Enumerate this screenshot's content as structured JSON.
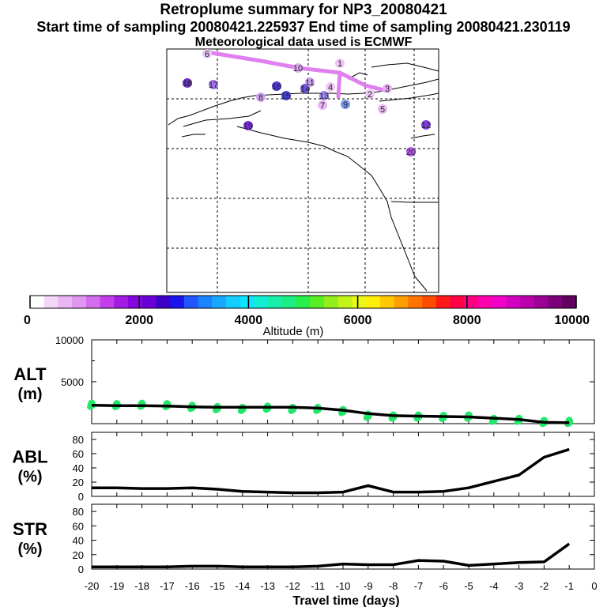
{
  "titles": {
    "line1": "Retroplume summary for NP3_20080421",
    "line2": "Start time of sampling 20080421.225937     End time of sampling 20080421.230119",
    "line3": "Meteorological data used is ECMWF"
  },
  "colors": {
    "series_line": "#000000",
    "alt_points": "#22e86a",
    "plume_path": "#e080f0"
  },
  "colorbar": {
    "label": "Altitude (m)",
    "ticks": [
      "0",
      "2000",
      "4000",
      "6000",
      "8000",
      "10000"
    ],
    "min": 0,
    "max": 10000,
    "colors": [
      "#ffffff",
      "#f4d6f6",
      "#eab6f2",
      "#e196ef",
      "#d46ced",
      "#c13ee8",
      "#a21be4",
      "#8306df",
      "#6b00d6",
      "#3d00c9",
      "#1b13ee",
      "#2256ff",
      "#1c83ff",
      "#18a9ff",
      "#14cdff",
      "#10e3ff",
      "#11eed4",
      "#17eeaa",
      "#1bee85",
      "#27ee4a",
      "#58ee24",
      "#93ee19",
      "#c2f418",
      "#e8f818",
      "#ffee0c",
      "#ffc800",
      "#ff9e00",
      "#ff7400",
      "#ff4d00",
      "#ff1a1a",
      "#ff0046",
      "#ff0082",
      "#ff00ae",
      "#f000c8",
      "#d400c0",
      "#ba00ab",
      "#9c0094",
      "#7b007a",
      "#600060"
    ]
  },
  "map_labels": [
    "20",
    "19",
    "18",
    "17",
    "16",
    "15",
    "14",
    "13",
    "12",
    "11",
    "10",
    "9",
    "8",
    "7",
    "6",
    "5",
    "4",
    "3",
    "2",
    "1"
  ],
  "chart_data": [
    {
      "type": "line",
      "title": "ALT",
      "ylabel": "ALT (m)",
      "ylabel_top": "ALT",
      "ylabel_bottom": "(m)",
      "xlabel": "",
      "ylim": [
        0,
        10000
      ],
      "yticks": [
        "10000",
        "5000"
      ],
      "x": [
        -20,
        -19,
        -18,
        -17,
        -16,
        -15,
        -14,
        -13,
        -12,
        -11,
        -10,
        -9,
        -8,
        -7,
        -6,
        -5,
        -4,
        -3,
        -2,
        -1
      ],
      "values": [
        2200,
        2150,
        2150,
        2100,
        2000,
        1950,
        1950,
        1950,
        1950,
        1850,
        1600,
        1200,
        950,
        900,
        850,
        800,
        650,
        500,
        150,
        100
      ],
      "points": [
        2300,
        2250,
        2300,
        2250,
        2050,
        1900,
        1800,
        1950,
        1800,
        1800,
        1550,
        1000,
        900,
        900,
        850,
        900,
        500,
        500,
        250,
        250
      ]
    },
    {
      "type": "line",
      "title": "ABL",
      "ylabel": "ABL (%)",
      "ylabel_top": "ABL",
      "ylabel_bottom": "(%)",
      "xlabel": "",
      "ylim": [
        0,
        90
      ],
      "yticks": [
        "80",
        "60",
        "40",
        "20",
        "0"
      ],
      "x": [
        -20,
        -19,
        -18,
        -17,
        -16,
        -15,
        -14,
        -13,
        -12,
        -11,
        -10,
        -9,
        -8,
        -7,
        -6,
        -5,
        -4,
        -3,
        -2,
        -1
      ],
      "values": [
        12,
        12,
        11,
        11,
        12,
        10,
        7,
        6,
        5,
        5,
        6,
        15,
        6,
        6,
        7,
        12,
        21,
        30,
        55,
        66
      ]
    },
    {
      "type": "line",
      "title": "STR",
      "ylabel": "STR (%)",
      "ylabel_top": "STR",
      "ylabel_bottom": "(%)",
      "xlabel": "Travel time (days)",
      "ylim": [
        0,
        90
      ],
      "yticks": [
        "80",
        "60",
        "40",
        "20",
        "0"
      ],
      "xticks": [
        "-20",
        "-19",
        "-18",
        "-17",
        "-16",
        "-15",
        "-14",
        "-13",
        "-12",
        "-11",
        "-10",
        "-9",
        "-8",
        "-7",
        "-6",
        "-5",
        "-4",
        "-3",
        "-2",
        "-1",
        "0"
      ],
      "x": [
        -20,
        -19,
        -18,
        -17,
        -16,
        -15,
        -14,
        -13,
        -12,
        -11,
        -10,
        -9,
        -8,
        -7,
        -6,
        -5,
        -4,
        -3,
        -2,
        -1
      ],
      "values": [
        3,
        3,
        3,
        3,
        4,
        4,
        3,
        3,
        3,
        4,
        7,
        6,
        6,
        12,
        11,
        5,
        7,
        9,
        10,
        35
      ]
    }
  ]
}
